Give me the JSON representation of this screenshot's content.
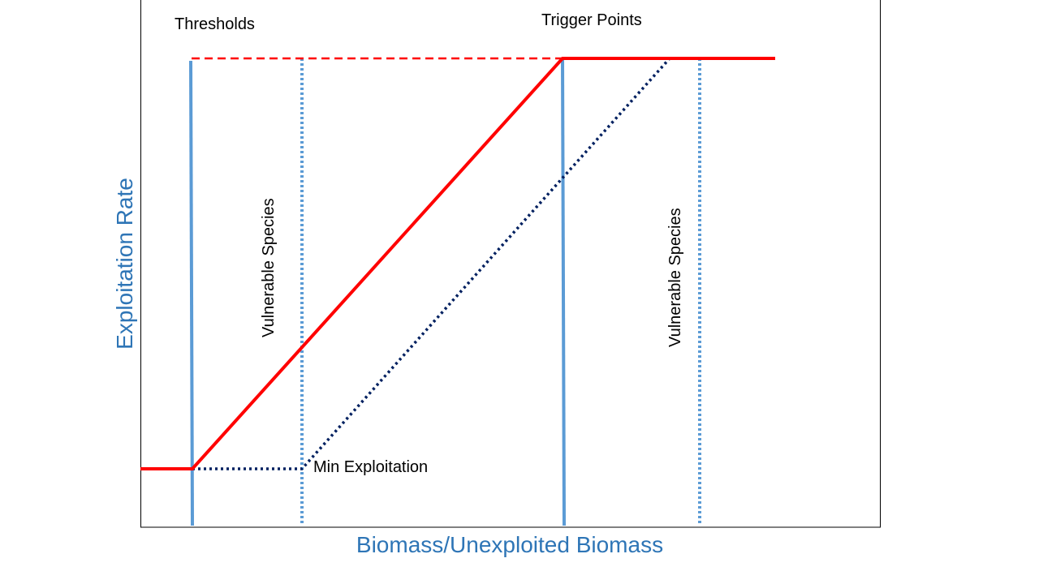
{
  "labels": {
    "thresholds": "Thresholds",
    "trigger_points": "Trigger Points",
    "vulnerable_species_left": "Vulnerable Species",
    "vulnerable_species_right": "Vulnerable Species",
    "min_exploitation": "Min Exploitation",
    "x_axis": "Biomass/Unexploited Biomass",
    "y_axis": "Exploitation Rate"
  },
  "colors": {
    "harvest_control_rule": "#ff0000",
    "vulnerable_species_rule": "#002060",
    "solid_reference_lines": "#5b9bd5",
    "dotted_reference_lines": "#5b9bd5",
    "axis_title_text": "#2e75b6",
    "frame": "#000000"
  }
}
